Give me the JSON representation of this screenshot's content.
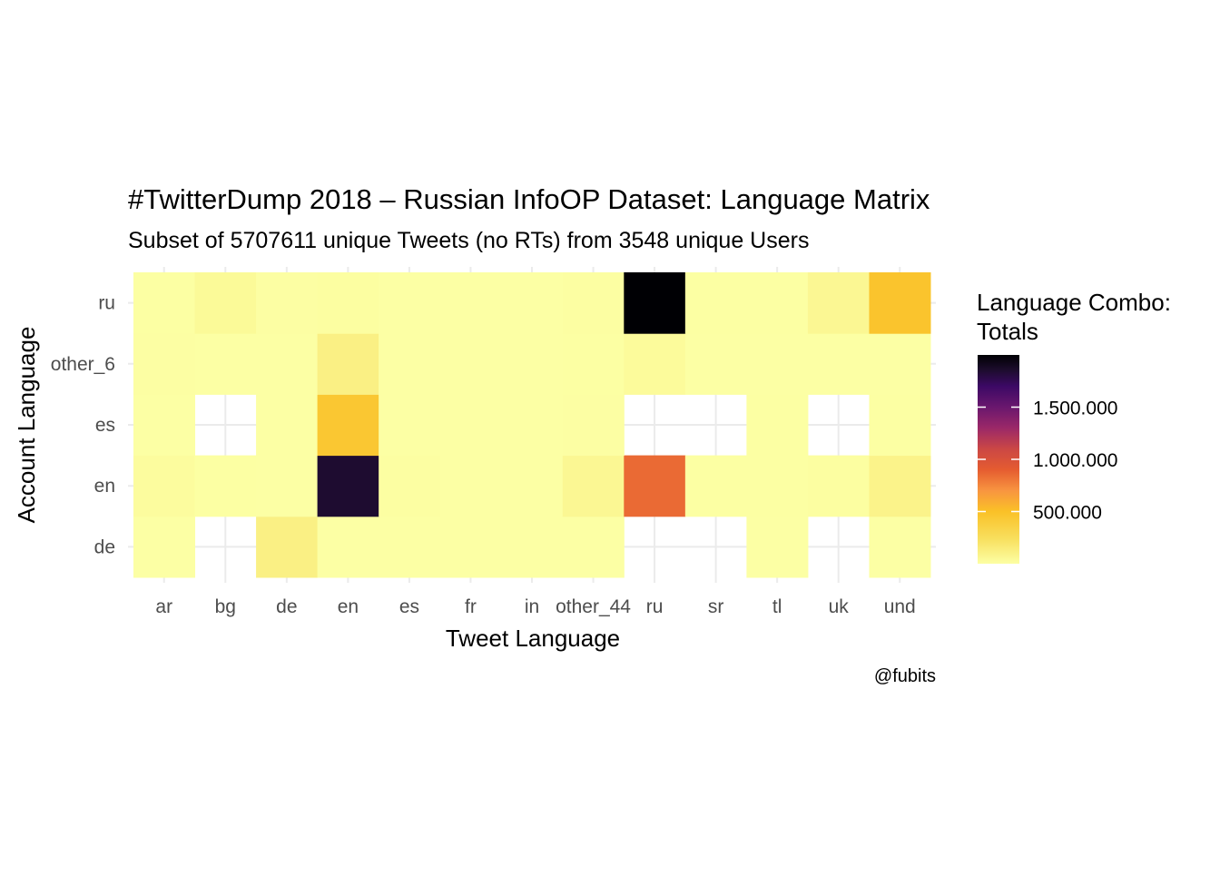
{
  "chart_data": {
    "type": "heatmap",
    "title": "#TwitterDump 2018 – Russian InfoOP Dataset: Language Matrix",
    "subtitle": "Subset of 5707611 unique Tweets (no RTs) from 3548 unique Users",
    "xlabel": "Tweet Language",
    "ylabel": "Account Language",
    "caption": "@fubits",
    "x_categories": [
      "ar",
      "bg",
      "de",
      "en",
      "es",
      "fr",
      "in",
      "other_44",
      "ru",
      "sr",
      "tl",
      "uk",
      "und"
    ],
    "y_categories": [
      "de",
      "en",
      "es",
      "other_6",
      "ru"
    ],
    "legend": {
      "title_line1": "Language Combo:",
      "title_line2": "Totals",
      "breaks": [
        500000,
        1000000,
        1500000
      ],
      "break_labels": [
        "500.000",
        "1.000.000",
        "1.500.000"
      ],
      "min": 0,
      "max": 2000000,
      "placement": "right"
    },
    "grid": true,
    "color_scale": "inferno (reversed)",
    "values": {
      "ru": {
        "ar": 3000,
        "bg": 40000,
        "de": 5000,
        "en": 10000,
        "es": 1000,
        "fr": 1000,
        "in": 1000,
        "other_44": 6000,
        "ru": 2000000,
        "sr": 3000,
        "tl": 3000,
        "uk": 60000,
        "und": 470000
      },
      "other_6": {
        "ar": 5000,
        "bg": 1000,
        "de": 1000,
        "en": 110000,
        "es": 1000,
        "fr": 1000,
        "in": 1000,
        "other_44": 2000,
        "ru": 30000,
        "sr": 1000,
        "tl": 1000,
        "uk": 1000,
        "und": 1000
      },
      "es": {
        "ar": 1000,
        "bg": null,
        "de": 1000,
        "en": 450000,
        "es": 1000,
        "fr": 1000,
        "in": 1000,
        "other_44": 4000,
        "ru": null,
        "sr": null,
        "tl": 2000,
        "uk": null,
        "und": 2000
      },
      "en": {
        "ar": 22000,
        "bg": 2000,
        "de": 1000,
        "en": 1850000,
        "es": 8000,
        "fr": 1000,
        "in": 1000,
        "other_44": 60000,
        "ru": 850000,
        "sr": 3000,
        "tl": 2000,
        "uk": 10000,
        "und": 90000
      },
      "de": {
        "ar": 1000,
        "bg": null,
        "de": 110000,
        "en": 1000,
        "es": 1000,
        "fr": 1000,
        "in": 1000,
        "other_44": 1000,
        "ru": null,
        "sr": null,
        "tl": 1000,
        "uk": null,
        "und": 1000
      }
    }
  }
}
